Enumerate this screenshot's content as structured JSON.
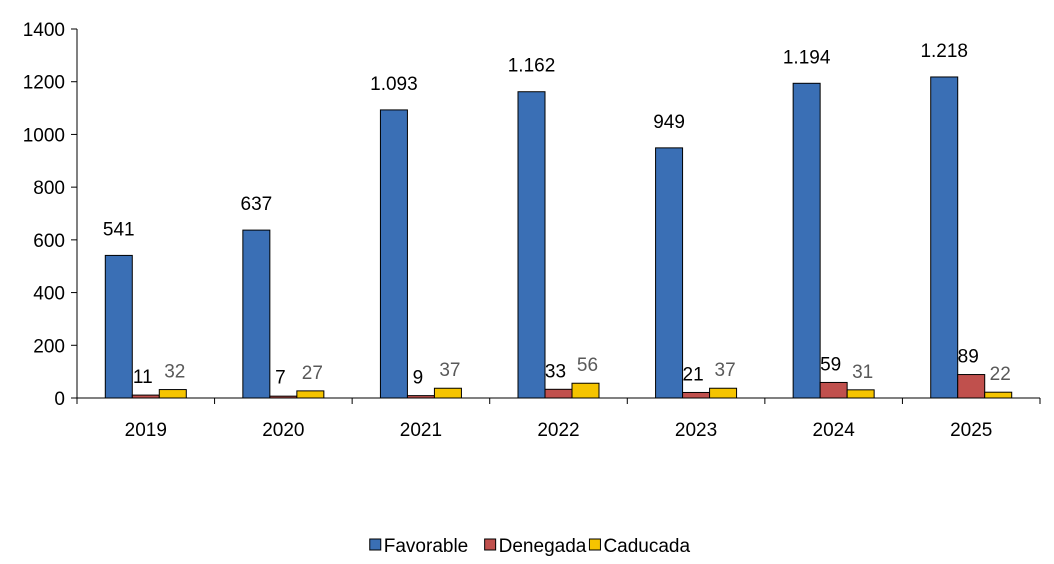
{
  "chart_data": {
    "type": "bar",
    "categories": [
      "2019",
      "2020",
      "2021",
      "2022",
      "2023",
      "2024",
      "2025"
    ],
    "series": [
      {
        "name": "Favorable",
        "values": [
          541,
          637,
          1093,
          1162,
          949,
          1194,
          1218
        ],
        "labels": [
          "541",
          "637",
          "1.093",
          "1.162",
          "949",
          "1.194",
          "1.218"
        ],
        "color": "#3A6FB5",
        "label_color": "#000000"
      },
      {
        "name": "Denegada",
        "values": [
          11,
          7,
          9,
          33,
          21,
          59,
          89
        ],
        "labels": [
          "11",
          "7",
          "9",
          "33",
          "21",
          "59",
          "89"
        ],
        "color": "#C0504D",
        "label_color": "#000000"
      },
      {
        "name": "Caducada",
        "values": [
          32,
          27,
          37,
          56,
          37,
          31,
          22
        ],
        "labels": [
          "32",
          "27",
          "37",
          "56",
          "37",
          "31",
          "22"
        ],
        "color": "#F5C400",
        "label_color": "#595959"
      }
    ],
    "ylim": [
      0,
      1400
    ],
    "yticks": [
      0,
      200,
      400,
      600,
      800,
      1000,
      1200,
      1400
    ],
    "legend_position": "bottom",
    "grid": false
  }
}
